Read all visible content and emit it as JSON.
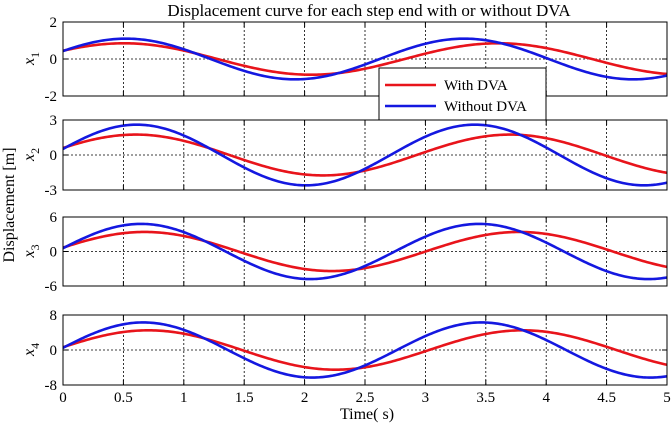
{
  "chart_data": {
    "type": "line",
    "title": "Displacement curve for each step end with or without DVA",
    "xlabel": "Time(  s)",
    "ylabel": "Displacement [m]",
    "xlim": [
      0,
      5
    ],
    "x_ticks": [
      "0",
      "0.5",
      "1",
      "1.5",
      "2",
      "2.5",
      "3",
      "3.5",
      "4",
      "4.5",
      "5"
    ],
    "legend": {
      "location": "inside top-right of first subplot",
      "entries": [
        "With DVA",
        "Without DVA"
      ]
    },
    "series_colors": {
      "With DVA": "#e8141b",
      "Without DVA": "#1418e0"
    },
    "grid": true,
    "subplots": [
      {
        "ylabel_main": "x",
        "ylabel_sub": "1",
        "ylim": [
          -2,
          2
        ],
        "y_ticks": [
          "2",
          "0",
          "-2"
        ],
        "series": [
          {
            "name": "With DVA",
            "amplitude": 0.85,
            "period": 3.1,
            "phase": 0.55
          },
          {
            "name": "Without DVA",
            "amplitude": 1.1,
            "period": 2.8,
            "phase": 0.4
          }
        ]
      },
      {
        "ylabel_main": "x",
        "ylabel_sub": "2",
        "ylim": [
          -3,
          3
        ],
        "y_ticks": [
          "3",
          "0",
          "-3"
        ],
        "series": [
          {
            "name": "With DVA",
            "amplitude": 1.75,
            "period": 3.1,
            "phase": 0.35
          },
          {
            "name": "Without DVA",
            "amplitude": 2.6,
            "period": 2.8,
            "phase": 0.2
          }
        ]
      },
      {
        "ylabel_main": "x",
        "ylabel_sub": "3",
        "ylim": [
          -6,
          6
        ],
        "y_ticks": [
          "6",
          "0",
          "-6"
        ],
        "series": [
          {
            "name": "With DVA",
            "amplitude": 3.4,
            "period": 3.1,
            "phase": 0.2
          },
          {
            "name": "Without DVA",
            "amplitude": 4.8,
            "period": 2.8,
            "phase": 0.12
          }
        ]
      },
      {
        "ylabel_main": "x",
        "ylabel_sub": "4",
        "ylim": [
          -8,
          8
        ],
        "y_ticks": [
          "8",
          "0",
          "-8"
        ],
        "series": [
          {
            "name": "With DVA",
            "amplitude": 4.5,
            "period": 3.1,
            "phase": 0.14
          },
          {
            "name": "Without DVA",
            "amplitude": 6.3,
            "period": 2.8,
            "phase": 0.08
          }
        ]
      }
    ]
  }
}
